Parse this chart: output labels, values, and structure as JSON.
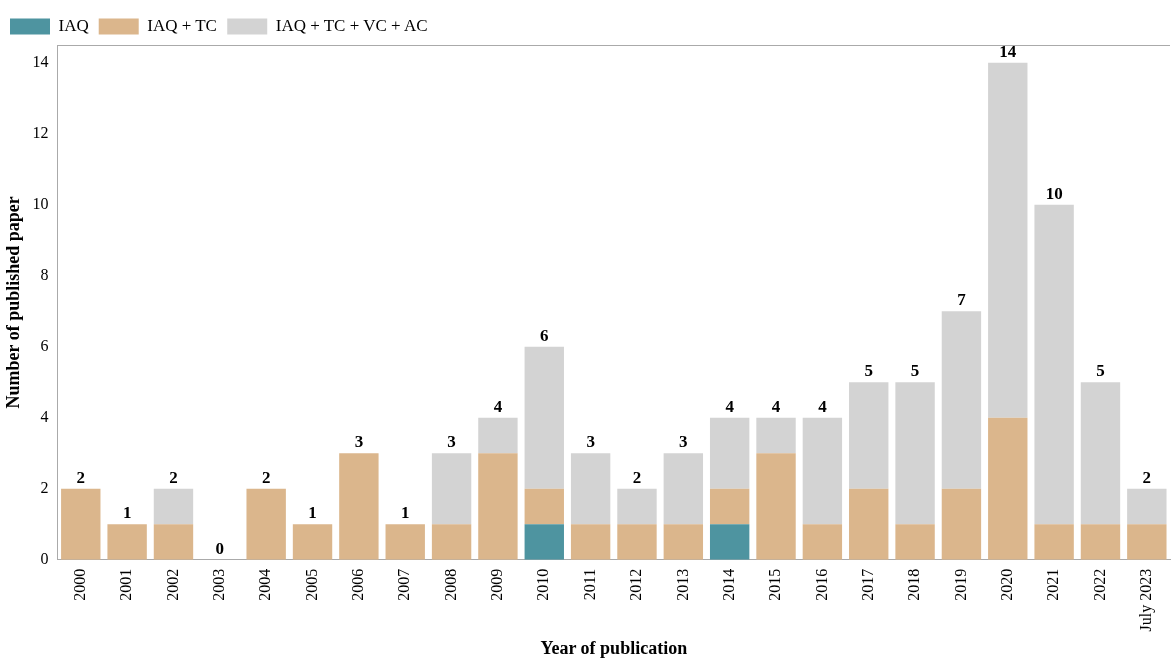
{
  "chart_data": {
    "type": "bar",
    "stacked": true,
    "xlabel": "Year of publication",
    "ylabel": "Number of published paper",
    "categories": [
      "2000",
      "2001",
      "2002",
      "2003",
      "2004",
      "2005",
      "2006",
      "2007",
      "2008",
      "2009",
      "2010",
      "2011",
      "2012",
      "2013",
      "2014",
      "2015",
      "2016",
      "2017",
      "2018",
      "2019",
      "2020",
      "2021",
      "2022",
      "July 2023"
    ],
    "series": [
      {
        "name": "IAQ",
        "color": "#4e94a0",
        "values": [
          0,
          0,
          0,
          0,
          0,
          0,
          0,
          0,
          0,
          0,
          1,
          0,
          0,
          0,
          1,
          0,
          0,
          0,
          0,
          0,
          0,
          0,
          0,
          0
        ]
      },
      {
        "name": "IAQ + TC",
        "color": "#dbb68c",
        "values": [
          2,
          1,
          1,
          0,
          2,
          1,
          3,
          1,
          1,
          3,
          1,
          1,
          1,
          1,
          1,
          3,
          1,
          2,
          1,
          2,
          4,
          1,
          1,
          1
        ]
      },
      {
        "name": "IAQ + TC + VC + AC",
        "color": "#d3d3d3",
        "values": [
          0,
          0,
          1,
          0,
          0,
          0,
          0,
          0,
          2,
          1,
          4,
          2,
          1,
          2,
          2,
          1,
          3,
          3,
          4,
          5,
          10,
          9,
          4,
          1
        ]
      }
    ],
    "totals": [
      "2",
      "1",
      "2",
      "0",
      "2",
      "1",
      "3",
      "1",
      "3",
      "4",
      "6",
      "3",
      "2",
      "3",
      "4",
      "4",
      "4",
      "5",
      "5",
      "7",
      "14",
      "10",
      "5",
      "2"
    ],
    "ylim": [
      0,
      14.5
    ],
    "yticks": [
      0,
      2,
      4,
      6,
      8,
      10,
      12,
      14
    ],
    "grid": false,
    "legend": "top left"
  }
}
